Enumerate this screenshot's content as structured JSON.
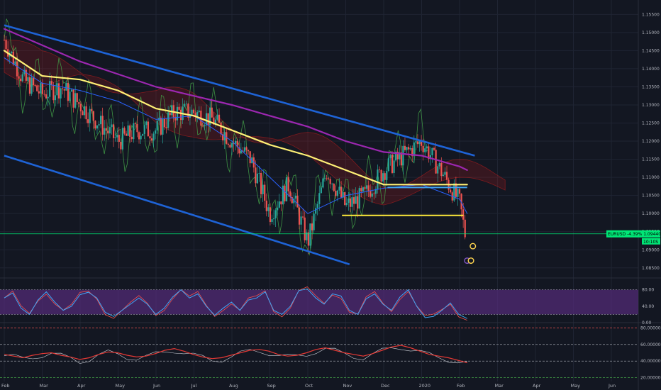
{
  "chart_data": {
    "type": "line",
    "symbol": "EURUSD",
    "colors": {
      "background": "#131722",
      "candle_up": "#26a69a",
      "candle_down": "#ef5350",
      "ma_slow": "#9c27b0",
      "ma_mid": "#fff176",
      "ma_fast": "#2962ff",
      "trend_channel": "#1e63d6",
      "support_line": "#ffeb3b",
      "cloud_green": "#2e7d32",
      "cloud_red": "#b71c1c",
      "rsi_band": "#5b2c83",
      "price_tag": "#00e676"
    },
    "x_months": [
      "Feb",
      "Mar",
      "Apr",
      "May",
      "Jun",
      "Jul",
      "Aug",
      "Sep",
      "Oct",
      "Nov",
      "Dec",
      "2020",
      "Feb",
      "Mar",
      "Apr",
      "May",
      "Jun"
    ],
    "y_ticks": [
      "1.15500",
      "1.15000",
      "1.14500",
      "1.14000",
      "1.13500",
      "1.13000",
      "1.12500",
      "1.12000",
      "1.11500",
      "1.11000",
      "1.10500",
      "1.10000",
      "1.09500",
      "1.09000",
      "1.08500"
    ],
    "y_tick_values": [
      1.155,
      1.15,
      1.145,
      1.14,
      1.135,
      1.13,
      1.125,
      1.12,
      1.115,
      1.11,
      1.105,
      1.1,
      1.095,
      1.09,
      1.085
    ],
    "ylim": [
      1.083,
      1.158
    ],
    "price_tag": {
      "label": "EURUSD -4.39% 1.09440",
      "value": 1.0944,
      "countdown": "10:10S"
    },
    "price_series": {
      "months": [
        0,
        0.5,
        1,
        1.5,
        2,
        2.5,
        3,
        3.5,
        4,
        4.5,
        5,
        5.5,
        6,
        6.5,
        7,
        7.5,
        8,
        8.5,
        9,
        9.5,
        10,
        10.5,
        11,
        11.5,
        12,
        12.15
      ],
      "values": [
        1.148,
        1.137,
        1.133,
        1.135,
        1.13,
        1.125,
        1.12,
        1.123,
        1.123,
        1.128,
        1.128,
        1.126,
        1.12,
        1.115,
        1.1,
        1.108,
        1.092,
        1.112,
        1.102,
        1.105,
        1.112,
        1.116,
        1.12,
        1.112,
        1.103,
        1.094
      ]
    },
    "ma_slow": {
      "months": [
        0,
        2,
        4,
        6,
        8,
        9,
        10,
        11,
        12,
        12.2
      ],
      "values": [
        1.151,
        1.142,
        1.135,
        1.13,
        1.124,
        1.12,
        1.117,
        1.116,
        1.113,
        1.112
      ]
    },
    "ma_mid": {
      "months": [
        0,
        1,
        2,
        3,
        4,
        5,
        6,
        7,
        8,
        9,
        10,
        11,
        11.5,
        12,
        12.2
      ],
      "values": [
        1.145,
        1.138,
        1.137,
        1.134,
        1.129,
        1.127,
        1.123,
        1.119,
        1.116,
        1.112,
        1.108,
        1.108,
        1.108,
        1.108,
        1.108
      ]
    },
    "ma_fast": {
      "months": [
        0,
        1,
        2,
        3,
        4,
        5,
        6,
        7,
        8,
        9,
        10,
        11,
        12,
        12.2
      ],
      "values": [
        1.143,
        1.136,
        1.134,
        1.131,
        1.126,
        1.127,
        1.12,
        1.11,
        1.1,
        1.105,
        1.107,
        1.108,
        1.104,
        1.1
      ]
    },
    "trend_upper": {
      "months": [
        0,
        12.4
      ],
      "values": [
        1.152,
        1.116
      ]
    },
    "trend_lower": {
      "months": [
        0,
        9.1
      ],
      "values": [
        1.116,
        1.086
      ]
    },
    "support": {
      "months": [
        8.9,
        12.1
      ],
      "values": [
        1.0995,
        1.0995
      ]
    },
    "support2": {
      "months": [
        10.1,
        12.2
      ],
      "values": [
        1.1072,
        1.1072
      ]
    },
    "rsi": {
      "y_ticks": [
        "80.00",
        "40.00",
        "0.00"
      ],
      "y_tick_values": [
        80,
        40,
        0
      ],
      "ylim": [
        0,
        100
      ],
      "band": [
        20,
        80
      ],
      "values": [
        60,
        72,
        35,
        20,
        55,
        75,
        50,
        30,
        40,
        68,
        74,
        60,
        25,
        15,
        30,
        45,
        60,
        45,
        20,
        35,
        62,
        80,
        60,
        70,
        40,
        18,
        35,
        50,
        30,
        55,
        60,
        75,
        30,
        20,
        40,
        78,
        82,
        60,
        45,
        70,
        65,
        30,
        20,
        58,
        70,
        45,
        30,
        62,
        80,
        40,
        12,
        15,
        30,
        48,
        20,
        10
      ]
    },
    "oscillator": {
      "y_ticks": [
        "80.00000",
        "60.00000",
        "40.00000",
        "20.00000"
      ],
      "y_tick_values": [
        80,
        60,
        40,
        20
      ],
      "ylim": [
        18,
        82
      ],
      "values": [
        48,
        46,
        44,
        47,
        49,
        50,
        47,
        45,
        42,
        44,
        48,
        51,
        50,
        47,
        45,
        46,
        49,
        53,
        55,
        52,
        48,
        45,
        43,
        44,
        47,
        50,
        53,
        54,
        52,
        48,
        46,
        47,
        50,
        54,
        56,
        53,
        50,
        48,
        46,
        49,
        53,
        57,
        59,
        56,
        52,
        48,
        46,
        44,
        41,
        38
      ]
    }
  }
}
